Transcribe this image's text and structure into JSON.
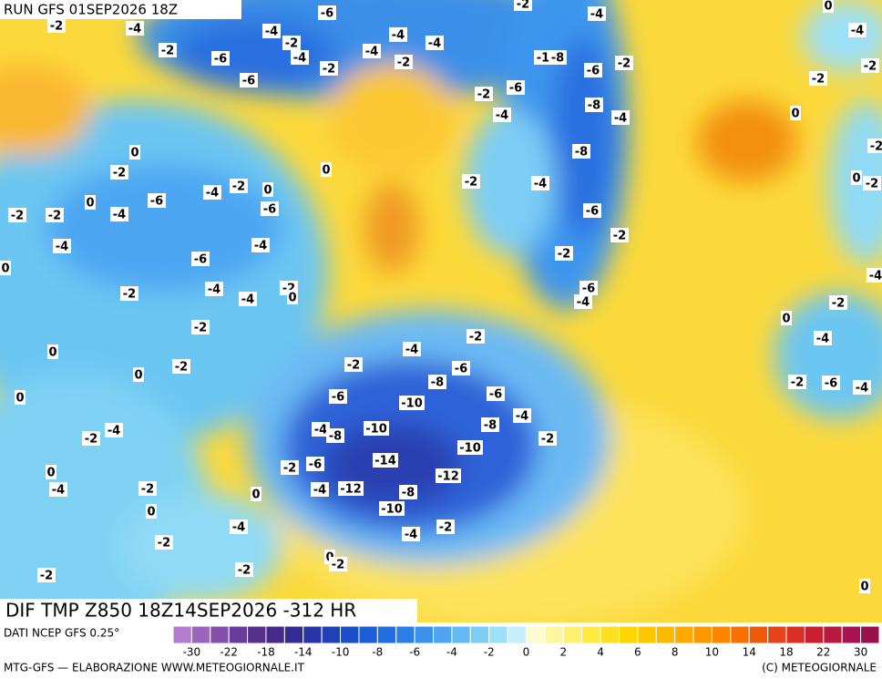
{
  "header": {
    "run": "RUN GFS 01SEP2026 18Z"
  },
  "footer": {
    "title": "DIF TMP Z850 18Z14SEP2026 -312 HR",
    "source": "DATI NCEP GFS 0.25°",
    "credit": "MTG-GFS — ELABORAZIONE WWW.METEOGIORNALE.IT",
    "copyright": "(C) METEOGIORNALE"
  },
  "colorbar": {
    "colors": [
      "#b47ccc",
      "#9c64bc",
      "#8450ac",
      "#6c3c9c",
      "#58308e",
      "#452a8a",
      "#332c95",
      "#2834a6",
      "#2040b8",
      "#1c4ec8",
      "#1c5ed6",
      "#206ee0",
      "#2a80e8",
      "#3a92ee",
      "#4ea6f2",
      "#64baf4",
      "#7ccdf6",
      "#9cdff8",
      "#c4eefa",
      "#fffbd0",
      "#fff6a0",
      "#fff070",
      "#ffe840",
      "#ffdf20",
      "#ffd400",
      "#ffc600",
      "#ffb800",
      "#ffa800",
      "#ff9800",
      "#ff8400",
      "#f87000",
      "#ee5a0c",
      "#e44418",
      "#d83024",
      "#c82030",
      "#b81a40",
      "#a81450",
      "#98104c"
    ],
    "labels": [
      "-30",
      "-22",
      "-18",
      "-14",
      "-10",
      "-8",
      "-6",
      "-4",
      "-2",
      "0",
      "2",
      "4",
      "6",
      "8",
      "10",
      "14",
      "18",
      "22",
      "30"
    ]
  },
  "contour_labels": [
    "-2",
    "-4",
    "-2",
    "-6",
    "-6",
    "-4",
    "-2",
    "-4",
    "-6",
    "-2",
    "-4",
    "-4",
    "-2",
    "-4",
    "-1",
    "-8",
    "-6",
    "-2",
    "-2",
    "-6",
    "-4",
    "-8",
    "-4",
    "-8",
    "-4",
    "-6",
    "-2",
    "-2",
    "-6",
    "-4",
    "-2",
    "0",
    "-2",
    "0",
    "-6",
    "-4",
    "-2",
    "-2",
    "-4",
    "-2",
    "0",
    "-6",
    "-4",
    "0",
    "-4",
    "-6",
    "0",
    "-2",
    "-4",
    "-4",
    "-2",
    "0",
    "-2",
    "0",
    "0",
    "-2",
    "0",
    "-4",
    "-2",
    "0",
    "-4",
    "-2",
    "0",
    "-2",
    "-2",
    "-4",
    "-2",
    "0",
    "0",
    "-2",
    "-2",
    "-6",
    "-4",
    "-12",
    "-14",
    "-8",
    "-10",
    "-12",
    "-4",
    "-2",
    "-10",
    "-8",
    "-10",
    "-4",
    "-8",
    "-6",
    "-10",
    "-8",
    "-6",
    "-6",
    "-4",
    "-2",
    "-4",
    "-2",
    "-2",
    "0",
    "-4",
    "-2",
    "-6",
    "-4",
    "-2",
    "-4",
    "0",
    "-2",
    "-2",
    "0",
    "-2",
    "-2",
    "-4",
    "0",
    "0",
    "-4",
    "-2"
  ]
}
